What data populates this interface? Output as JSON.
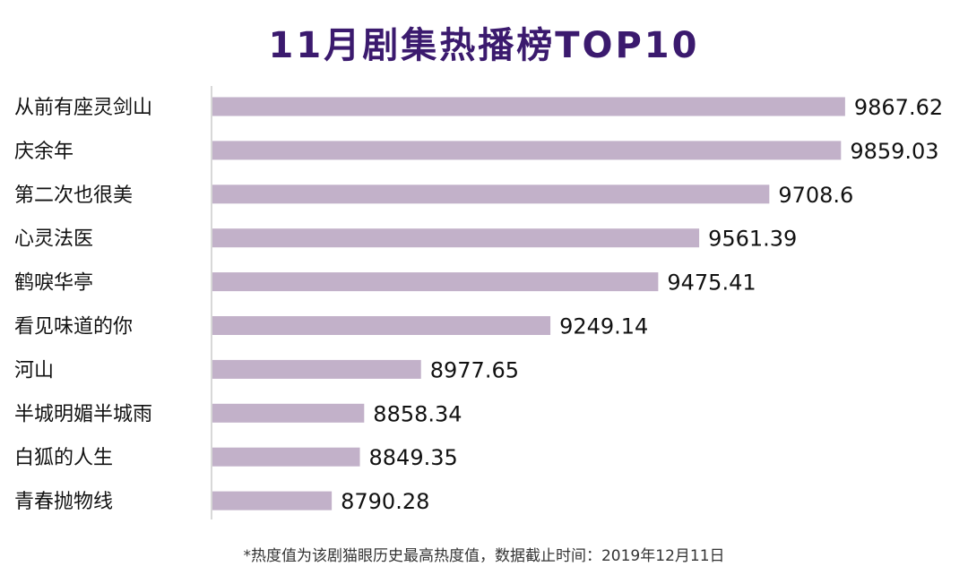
{
  "colors": {
    "bar": "#c2b1c9",
    "title": "#3b1a6e",
    "axis": "#cccccc"
  },
  "chart_data": {
    "type": "bar",
    "orientation": "horizontal",
    "title": "11月剧集热播榜TOP10",
    "footnote": "*热度值为该剧猫眼历史最高热度值，数据截止时间：2019年12月11日",
    "categories": [
      "从前有座灵剑山",
      "庆余年",
      "第二次也很美",
      "心灵法医",
      "鹤唳华亭",
      "看见味道的你",
      "河山",
      "半城明媚半城雨",
      "白狐的人生",
      "青春抛物线"
    ],
    "values": [
      9867.62,
      9859.03,
      9708.6,
      9561.39,
      9475.41,
      9249.14,
      8977.65,
      8858.34,
      8849.35,
      8790.28
    ],
    "value_labels": [
      "9867.62",
      "9859.03",
      "9708.6",
      "9561.39",
      "9475.41",
      "9249.14",
      "8977.65",
      "8858.34",
      "8849.35",
      "8790.28"
    ],
    "xlim": [
      8538,
      9881
    ],
    "grid": false,
    "legend": "none"
  }
}
